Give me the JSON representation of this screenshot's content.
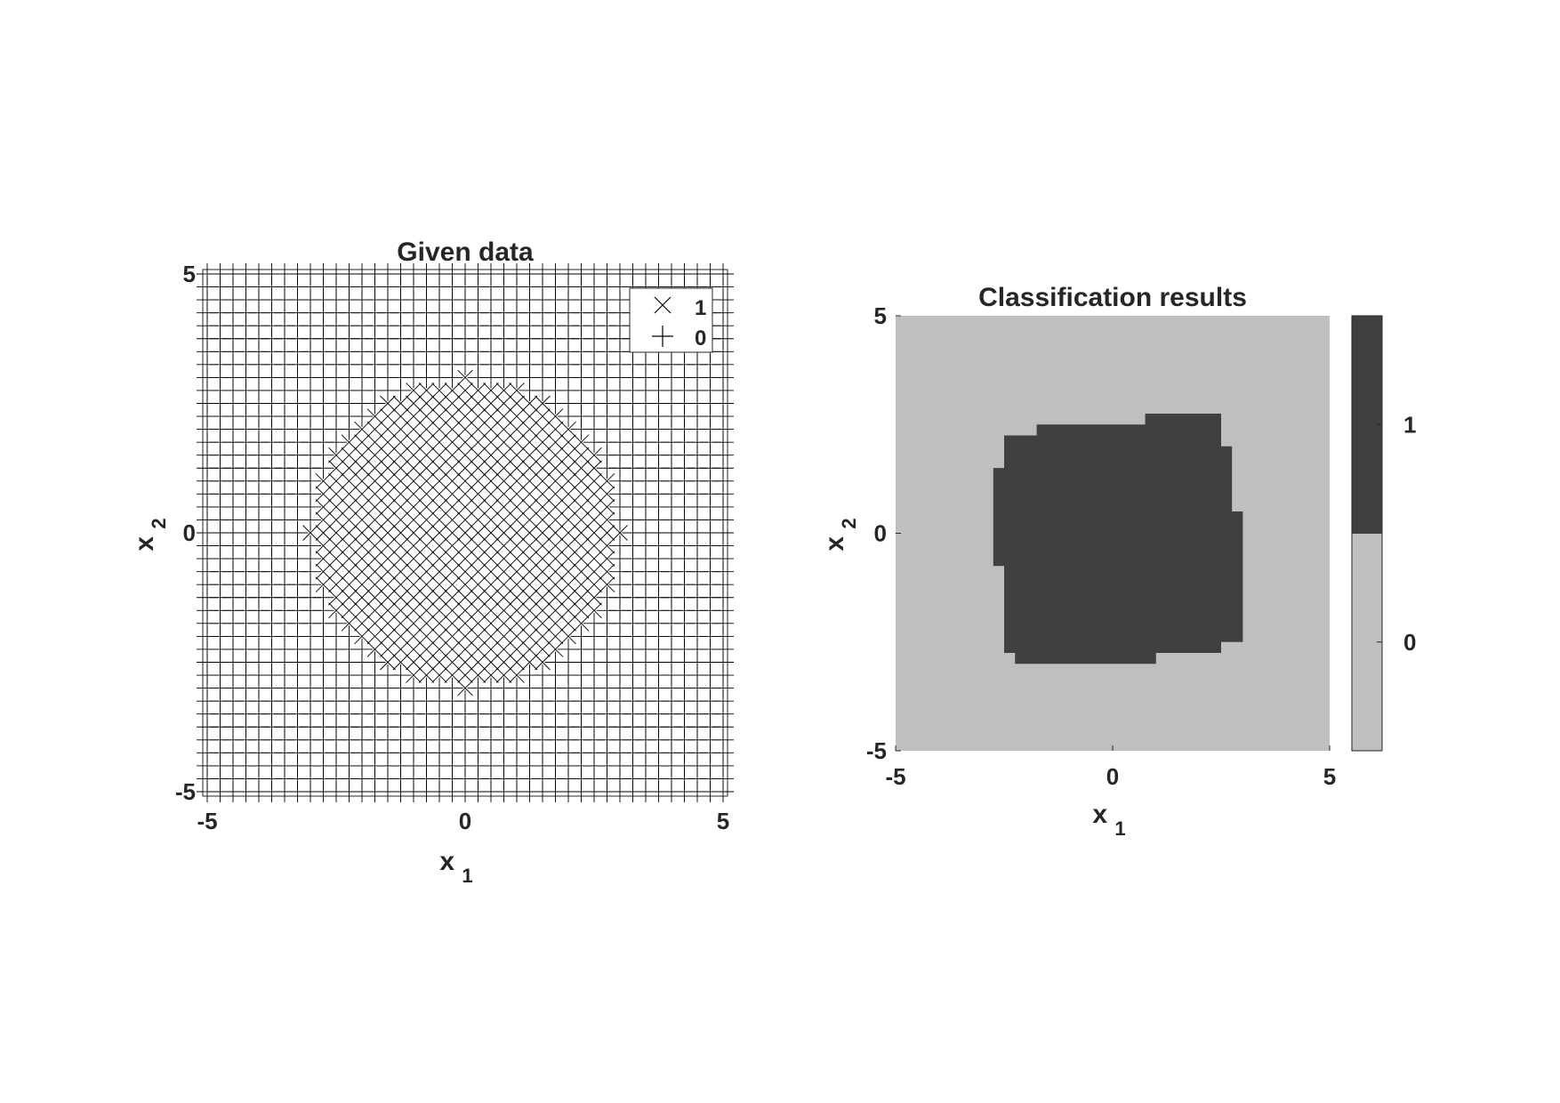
{
  "chart_data": [
    {
      "type": "scatter",
      "title": "Given data",
      "xlabel": "x",
      "xlabel_sub": "1",
      "ylabel": "x",
      "ylabel_sub": "2",
      "xlim": [
        -5,
        5
      ],
      "ylim": [
        -5,
        5
      ],
      "xticks": [
        -5,
        0,
        5
      ],
      "yticks": [
        -5,
        0,
        5
      ],
      "grid_points": {
        "x_start": -5,
        "x_end": 5,
        "y_start": -5,
        "y_end": 5,
        "step": 0.25
      },
      "class_rule": "x1^2 + x2^2 <= 9 gives class 1, otherwise class 0",
      "legend": {
        "location": "top-right",
        "entries": [
          {
            "label": "1",
            "marker": "x"
          },
          {
            "label": "0",
            "marker": "+"
          }
        ]
      },
      "series": [
        {
          "class": 1,
          "marker": "x",
          "region": {
            "shape": "circle",
            "radius": 3
          }
        },
        {
          "class": 0,
          "marker": "+",
          "region": {
            "shape": "outside-circle",
            "radius": 3
          }
        }
      ],
      "colors": {
        "marker": "#000000",
        "axes": "#262626"
      }
    },
    {
      "type": "heatmap",
      "title": "Classification results",
      "xlabel": "x",
      "xlabel_sub": "1",
      "ylabel": "x",
      "ylabel_sub": "2",
      "xlim": [
        -5,
        5
      ],
      "ylim": [
        -5,
        5
      ],
      "xticks": [
        -5,
        0,
        5
      ],
      "yticks": [
        -5,
        0,
        5
      ],
      "background_class": 0,
      "class_1_region": [
        [
          -2.5,
          -2.75
        ],
        [
          -2.5,
          2.25
        ],
        [
          -1.75,
          2.25
        ],
        [
          -1.75,
          2.5
        ],
        [
          0.75,
          2.5
        ],
        [
          0.75,
          2.75
        ],
        [
          2.5,
          2.75
        ],
        [
          2.5,
          2.0
        ],
        [
          2.75,
          2.0
        ],
        [
          2.75,
          0.5
        ],
        [
          3.0,
          0.5
        ],
        [
          3.0,
          -2.5
        ],
        [
          2.5,
          -2.5
        ],
        [
          2.5,
          -2.75
        ],
        [
          1.0,
          -2.75
        ],
        [
          1.0,
          -3.0
        ],
        [
          -2.25,
          -3.0
        ],
        [
          -2.25,
          -2.75
        ]
      ],
      "class_1_extra": [
        [
          -2.75,
          -0.75
        ],
        [
          -2.75,
          1.5
        ],
        [
          -2.5,
          1.5
        ],
        [
          -2.5,
          -0.75
        ]
      ],
      "colorbar": {
        "range": [
          -0.5,
          1.5
        ],
        "ticks": [
          0,
          1
        ],
        "classes": [
          {
            "label": "0",
            "color": "#bfbfbf"
          },
          {
            "label": "1",
            "color": "#404040"
          }
        ]
      },
      "colors": {
        "class_0": "#bfbfbf",
        "class_1": "#404040"
      }
    }
  ]
}
